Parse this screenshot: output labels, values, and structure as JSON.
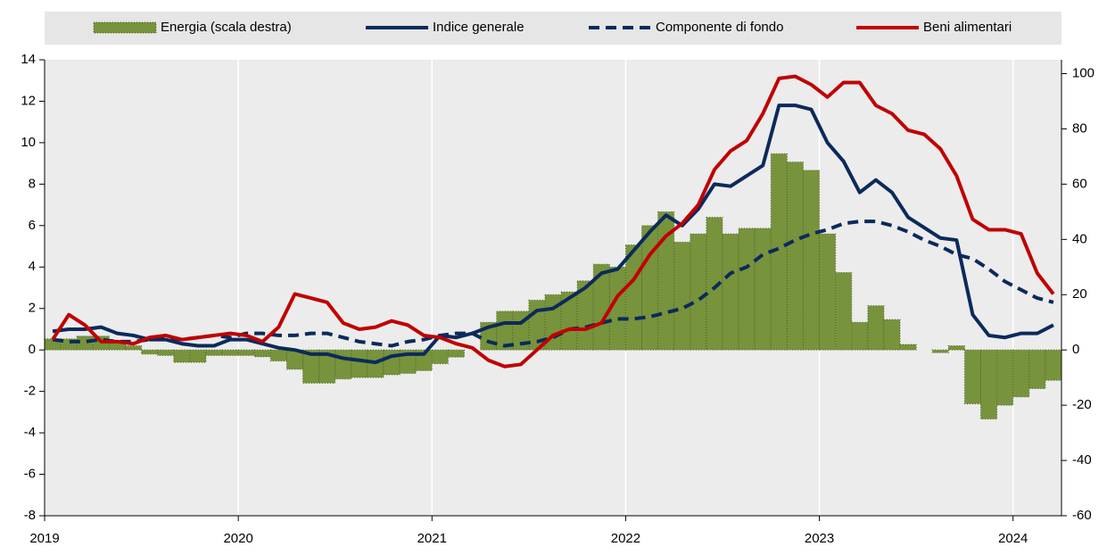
{
  "chart_data": {
    "type": "combo",
    "categories": [
      "2019",
      null,
      null,
      null,
      null,
      null,
      null,
      null,
      null,
      null,
      null,
      null,
      "2020",
      null,
      null,
      null,
      null,
      null,
      null,
      null,
      null,
      null,
      null,
      null,
      "2021",
      null,
      null,
      null,
      null,
      null,
      null,
      null,
      null,
      null,
      null,
      null,
      "2022",
      null,
      null,
      null,
      null,
      null,
      null,
      null,
      null,
      null,
      null,
      null,
      "2023",
      null,
      null,
      null,
      null,
      null,
      null,
      null,
      null,
      null,
      null,
      null,
      "2024",
      null,
      null
    ],
    "series": [
      {
        "name": "Energia (scala destra)",
        "type": "bar",
        "axis": "y2",
        "color": "#77933c",
        "values": [
          4,
          4,
          5,
          5,
          3,
          1.5,
          -1.5,
          -2,
          -4.5,
          -4.5,
          -2,
          -2,
          -2,
          -2.5,
          -4,
          -7,
          -12,
          -12,
          -10.5,
          -10,
          -10,
          -9,
          -8.5,
          -7.5,
          -5,
          -2.6,
          0,
          10,
          14,
          14,
          18,
          20,
          21,
          25,
          31,
          30,
          38,
          45,
          50,
          39,
          42,
          48,
          42,
          44,
          44,
          71,
          68,
          65,
          42,
          28,
          10,
          16,
          11,
          2,
          0,
          -1,
          1.5,
          -19.5,
          -25,
          -20,
          -17,
          -14,
          -11
        ]
      },
      {
        "name": "Indice generale",
        "type": "line",
        "color": "#0b2a5b",
        "values": [
          0.9,
          1.0,
          1.0,
          1.1,
          0.8,
          0.7,
          0.5,
          0.5,
          0.3,
          0.2,
          0.2,
          0.5,
          0.5,
          0.3,
          0.1,
          0.0,
          -0.2,
          -0.2,
          -0.4,
          -0.5,
          -0.6,
          -0.3,
          -0.2,
          -0.2,
          0.7,
          0.6,
          0.8,
          1.1,
          1.3,
          1.3,
          1.9,
          2.0,
          2.5,
          3.0,
          3.7,
          3.9,
          4.8,
          5.7,
          6.5,
          6.0,
          6.8,
          8.0,
          7.9,
          8.4,
          8.9,
          11.8,
          11.8,
          11.6,
          10.0,
          9.1,
          7.6,
          8.2,
          7.6,
          6.4,
          5.9,
          5.4,
          5.3,
          1.7,
          0.7,
          0.6,
          0.8,
          0.8,
          1.2
        ]
      },
      {
        "name": "Componente di fondo",
        "type": "line",
        "dashed": true,
        "color": "#0b2a5b",
        "values": [
          0.5,
          0.4,
          0.4,
          0.5,
          0.4,
          0.4,
          0.5,
          0.6,
          0.5,
          0.6,
          0.7,
          0.6,
          0.8,
          0.8,
          0.7,
          0.7,
          0.8,
          0.8,
          0.6,
          0.4,
          0.3,
          0.2,
          0.4,
          0.5,
          0.7,
          0.8,
          0.8,
          0.4,
          0.2,
          0.3,
          0.4,
          0.6,
          1.0,
          1.1,
          1.3,
          1.5,
          1.5,
          1.6,
          1.8,
          2.0,
          2.4,
          3.0,
          3.7,
          4.0,
          4.6,
          4.9,
          5.3,
          5.6,
          5.8,
          6.1,
          6.2,
          6.2,
          6.0,
          5.7,
          5.3,
          5.0,
          4.6,
          4.4,
          3.9,
          3.3,
          2.9,
          2.5,
          2.3
        ]
      },
      {
        "name": "Beni alimentari",
        "type": "line",
        "color": "#c00000",
        "values": [
          0.5,
          1.7,
          1.2,
          0.4,
          0.4,
          0.3,
          0.6,
          0.7,
          0.5,
          0.6,
          0.7,
          0.8,
          0.7,
          0.4,
          1.1,
          2.7,
          2.5,
          2.3,
          1.3,
          1.0,
          1.1,
          1.4,
          1.2,
          0.7,
          0.6,
          0.3,
          0.1,
          -0.5,
          -0.8,
          -0.7,
          0.0,
          0.7,
          1.0,
          1.0,
          1.3,
          2.6,
          3.4,
          4.6,
          5.5,
          6.1,
          7.0,
          8.7,
          9.6,
          10.1,
          11.4,
          13.1,
          13.2,
          12.8,
          12.2,
          12.9,
          12.9,
          11.8,
          11.4,
          10.6,
          10.4,
          9.7,
          8.4,
          6.3,
          5.8,
          5.8,
          5.6,
          3.7,
          2.7
        ]
      }
    ],
    "ylim": [
      -8,
      14
    ],
    "yticks": [
      -8,
      -6,
      -4,
      -2,
      0,
      2,
      4,
      6,
      8,
      10,
      12,
      14
    ],
    "y2lim": [
      -60,
      105
    ],
    "y2ticks": [
      -60,
      -40,
      -20,
      0,
      20,
      40,
      60,
      80,
      100
    ],
    "grid": "x",
    "legend": "top"
  }
}
